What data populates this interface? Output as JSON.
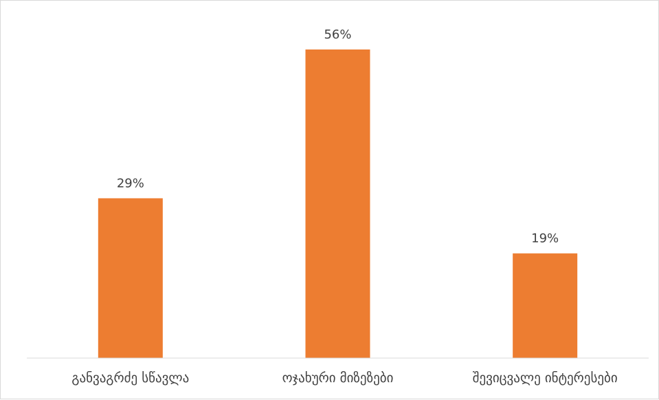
{
  "chart_data": {
    "type": "bar",
    "title": "",
    "xlabel": "",
    "ylabel": "",
    "categories": [
      "განვაგრძე სწავლა",
      "ოჯახური მიზეზები",
      "შევიცვალე ინტერესები"
    ],
    "values": [
      29,
      56,
      19
    ],
    "data_labels": [
      "29%",
      "56%",
      "19%"
    ],
    "unit": "%",
    "ylim": [
      0,
      60
    ],
    "grid": false,
    "legend": "none",
    "bar_color": "#ED7D31",
    "axis_color": "#D9D9D9",
    "text_color": "#404040"
  }
}
